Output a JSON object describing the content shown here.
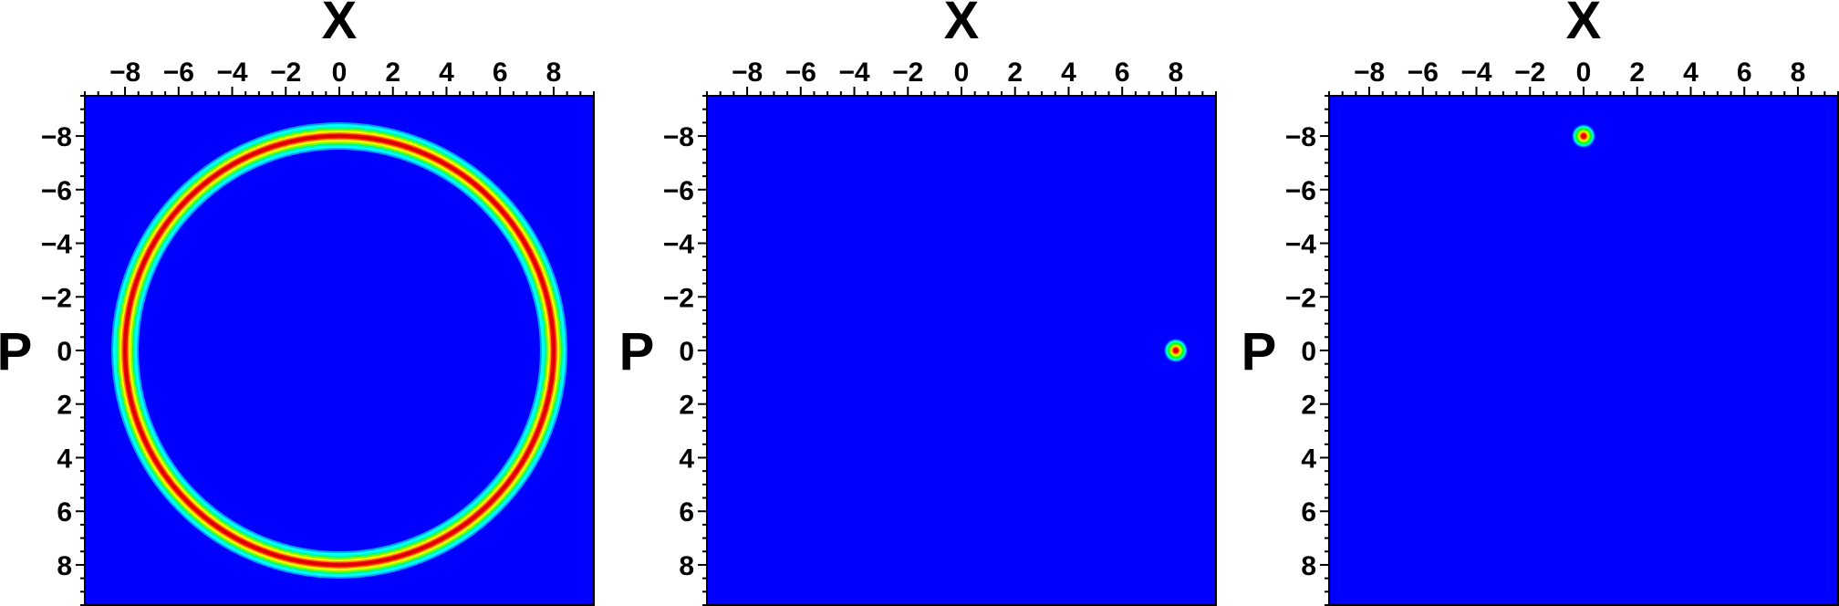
{
  "colors": {
    "background": "#0000ff",
    "colormap": [
      "#0000ff",
      "#00ffff",
      "#00ff00",
      "#ffff00",
      "#ff0000",
      "#cc0000"
    ],
    "axis": "#000000"
  },
  "chart_data": [
    {
      "type": "heatmap",
      "xlabel": "X",
      "ylabel": "P",
      "xlim": [
        -9.5,
        9.5
      ],
      "ylim": [
        -9.5,
        9.5
      ],
      "y_inverted": true,
      "x_ticks": [
        "−8",
        "−6",
        "−4",
        "−2",
        "0",
        "2",
        "4",
        "6",
        "8"
      ],
      "y_ticks": [
        "−8",
        "−6",
        "−4",
        "−2",
        "0",
        "2",
        "4",
        "6",
        "8"
      ],
      "x_tick_values": [
        -8,
        -6,
        -4,
        -2,
        0,
        2,
        4,
        6,
        8
      ],
      "y_tick_values": [
        -8,
        -6,
        -4,
        -2,
        0,
        2,
        4,
        6,
        8
      ],
      "feature": {
        "shape": "ring",
        "center": [
          0,
          0
        ],
        "radius": 8
      }
    },
    {
      "type": "heatmap",
      "xlabel": "X",
      "ylabel": "P",
      "xlim": [
        -9.5,
        9.5
      ],
      "ylim": [
        -9.5,
        9.5
      ],
      "y_inverted": true,
      "x_ticks": [
        "−8",
        "−6",
        "−4",
        "−2",
        "0",
        "2",
        "4",
        "6",
        "8"
      ],
      "y_ticks": [
        "−8",
        "−6",
        "−4",
        "−2",
        "0",
        "2",
        "4",
        "6",
        "8"
      ],
      "x_tick_values": [
        -8,
        -6,
        -4,
        -2,
        0,
        2,
        4,
        6,
        8
      ],
      "y_tick_values": [
        -8,
        -6,
        -4,
        -2,
        0,
        2,
        4,
        6,
        8
      ],
      "feature": {
        "shape": "spot",
        "center": [
          8,
          0
        ]
      }
    },
    {
      "type": "heatmap",
      "xlabel": "X",
      "ylabel": "P",
      "xlim": [
        -9.5,
        9.5
      ],
      "ylim": [
        -9.5,
        9.5
      ],
      "y_inverted": true,
      "x_ticks": [
        "−8",
        "−6",
        "−4",
        "−2",
        "0",
        "2",
        "4",
        "6",
        "8"
      ],
      "y_ticks": [
        "−8",
        "−6",
        "−4",
        "−2",
        "0",
        "2",
        "4",
        "6",
        "8"
      ],
      "x_tick_values": [
        -8,
        -6,
        -4,
        -2,
        0,
        2,
        4,
        6,
        8
      ],
      "y_tick_values": [
        -8,
        -6,
        -4,
        -2,
        0,
        2,
        4,
        6,
        8
      ],
      "feature": {
        "shape": "spot",
        "center": [
          0,
          -8
        ]
      }
    }
  ]
}
